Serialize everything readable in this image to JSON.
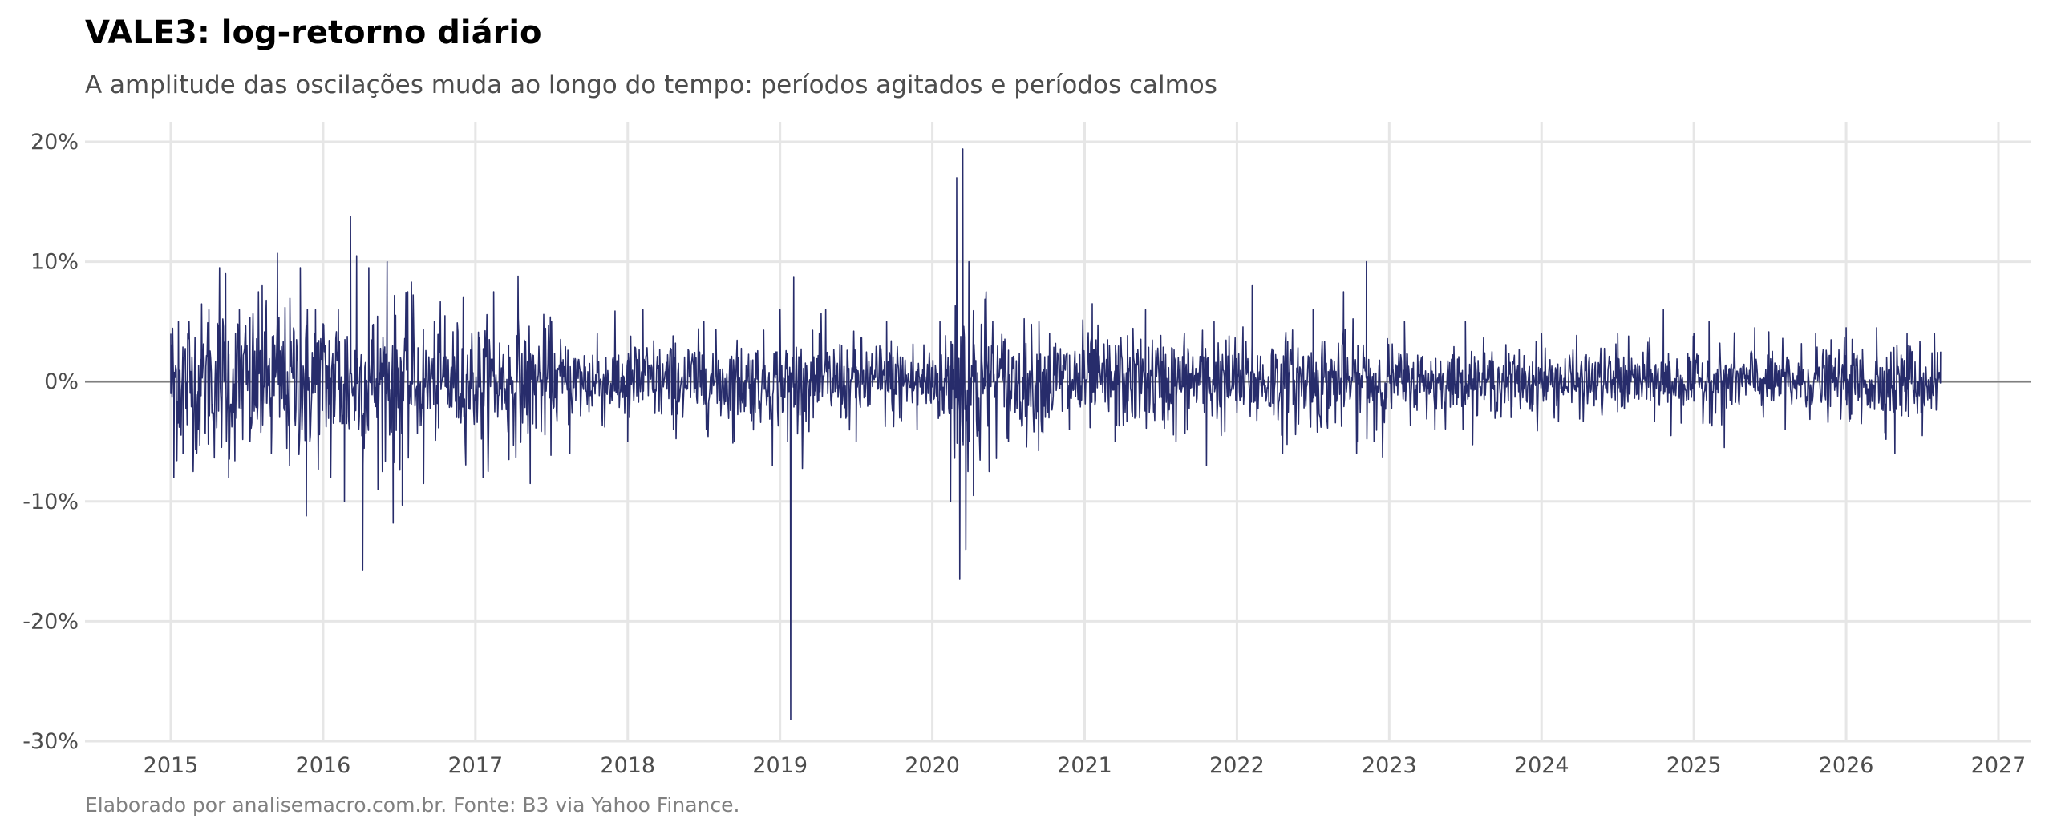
{
  "chart_data": {
    "type": "line",
    "title": "VALE3: log-retorno diário",
    "subtitle": "A amplitude das oscilações muda ao longo do tempo: períodos agitados e períodos calmos",
    "caption": "Elaborado por analisemacro.com.br. Fonte: B3 via Yahoo Finance.",
    "xlabel": "",
    "ylabel": "",
    "x_range": [
      "2014-06-10",
      "2027-03-20"
    ],
    "y_range": [
      -0.3,
      0.22
    ],
    "x_ticks": [
      "2015",
      "2016",
      "2017",
      "2018",
      "2019",
      "2020",
      "2021",
      "2022",
      "2023",
      "2024",
      "2025",
      "2026",
      "2027"
    ],
    "y_ticks": [
      {
        "value": 0.2,
        "label": "20%"
      },
      {
        "value": 0.1,
        "label": "10%"
      },
      {
        "value": 0.0,
        "label": "0%"
      },
      {
        "value": -0.1,
        "label": "-10%"
      },
      {
        "value": -0.2,
        "label": "-20%"
      },
      {
        "value": -0.3,
        "label": "-30%"
      }
    ],
    "grid": true,
    "reference_line": 0,
    "series_color": "#272c6b",
    "series": [
      {
        "x_unit": "year",
        "points": [
          [
            2015.0,
            0.04
          ],
          [
            2015.02,
            -0.08
          ],
          [
            2015.05,
            0.05
          ],
          [
            2015.08,
            -0.06
          ],
          [
            2015.12,
            0.05
          ],
          [
            2015.18,
            -0.04
          ],
          [
            2015.25,
            0.06
          ],
          [
            2015.3,
            -0.03
          ],
          [
            2015.32,
            0.095
          ],
          [
            2015.36,
            0.09
          ],
          [
            2015.38,
            -0.08
          ],
          [
            2015.45,
            0.06
          ],
          [
            2015.52,
            -0.05
          ],
          [
            2015.6,
            0.08
          ],
          [
            2015.66,
            -0.06
          ],
          [
            2015.7,
            0.107
          ],
          [
            2015.78,
            -0.07
          ],
          [
            2015.85,
            0.095
          ],
          [
            2015.89,
            -0.112
          ],
          [
            2015.95,
            0.06
          ],
          [
            2016.05,
            -0.08
          ],
          [
            2016.1,
            0.06
          ],
          [
            2016.14,
            -0.1
          ],
          [
            2016.18,
            0.138
          ],
          [
            2016.22,
            0.105
          ],
          [
            2016.26,
            -0.157
          ],
          [
            2016.3,
            0.095
          ],
          [
            2016.36,
            -0.09
          ],
          [
            2016.42,
            0.1
          ],
          [
            2016.46,
            -0.118
          ],
          [
            2016.52,
            -0.103
          ],
          [
            2016.58,
            0.083
          ],
          [
            2016.66,
            -0.085
          ],
          [
            2016.8,
            0.055
          ],
          [
            2016.92,
            0.07
          ],
          [
            2017.05,
            -0.08
          ],
          [
            2017.12,
            0.075
          ],
          [
            2017.22,
            -0.065
          ],
          [
            2017.28,
            0.088
          ],
          [
            2017.36,
            -0.085
          ],
          [
            2017.5,
            0.05
          ],
          [
            2017.62,
            -0.06
          ],
          [
            2017.8,
            0.04
          ],
          [
            2018.0,
            -0.05
          ],
          [
            2018.1,
            0.06
          ],
          [
            2018.3,
            -0.04
          ],
          [
            2018.5,
            0.05
          ],
          [
            2018.7,
            -0.05
          ],
          [
            2018.95,
            -0.07
          ],
          [
            2019.0,
            0.06
          ],
          [
            2019.05,
            -0.05
          ],
          [
            2019.07,
            -0.282
          ],
          [
            2019.09,
            0.087
          ],
          [
            2019.15,
            -0.04
          ],
          [
            2019.3,
            0.06
          ],
          [
            2019.5,
            -0.05
          ],
          [
            2019.7,
            0.05
          ],
          [
            2019.9,
            -0.04
          ],
          [
            2020.05,
            0.05
          ],
          [
            2020.12,
            -0.1
          ],
          [
            2020.16,
            0.17
          ],
          [
            2020.18,
            -0.165
          ],
          [
            2020.2,
            0.194
          ],
          [
            2020.22,
            -0.14
          ],
          [
            2020.24,
            0.1
          ],
          [
            2020.27,
            -0.095
          ],
          [
            2020.35,
            0.06
          ],
          [
            2020.5,
            -0.05
          ],
          [
            2020.7,
            0.05
          ],
          [
            2020.9,
            -0.04
          ],
          [
            2021.05,
            0.065
          ],
          [
            2021.2,
            -0.05
          ],
          [
            2021.4,
            0.06
          ],
          [
            2021.6,
            -0.05
          ],
          [
            2021.8,
            -0.07
          ],
          [
            2021.85,
            0.05
          ],
          [
            2022.1,
            0.08
          ],
          [
            2022.3,
            -0.06
          ],
          [
            2022.5,
            0.06
          ],
          [
            2022.7,
            0.075
          ],
          [
            2022.79,
            -0.05
          ],
          [
            2022.85,
            0.1
          ],
          [
            2022.9,
            -0.05
          ],
          [
            2023.1,
            0.05
          ],
          [
            2023.3,
            -0.04
          ],
          [
            2023.5,
            0.05
          ],
          [
            2023.8,
            -0.03
          ],
          [
            2024.0,
            0.04
          ],
          [
            2024.25,
            -0.03
          ],
          [
            2024.5,
            0.04
          ],
          [
            2024.8,
            0.06
          ],
          [
            2024.85,
            -0.045
          ],
          [
            2025.0,
            0.04
          ],
          [
            2025.1,
            0.05
          ],
          [
            2025.2,
            -0.055
          ],
          [
            2025.4,
            0.045
          ],
          [
            2025.6,
            -0.04
          ],
          [
            2025.8,
            0.04
          ],
          [
            2026.0,
            0.045
          ],
          [
            2026.1,
            -0.035
          ],
          [
            2026.2,
            0.045
          ],
          [
            2026.32,
            -0.06
          ],
          [
            2026.4,
            0.04
          ],
          [
            2026.5,
            -0.045
          ],
          [
            2026.58,
            0.04
          ],
          [
            2026.62,
            0.025
          ]
        ]
      }
    ]
  }
}
